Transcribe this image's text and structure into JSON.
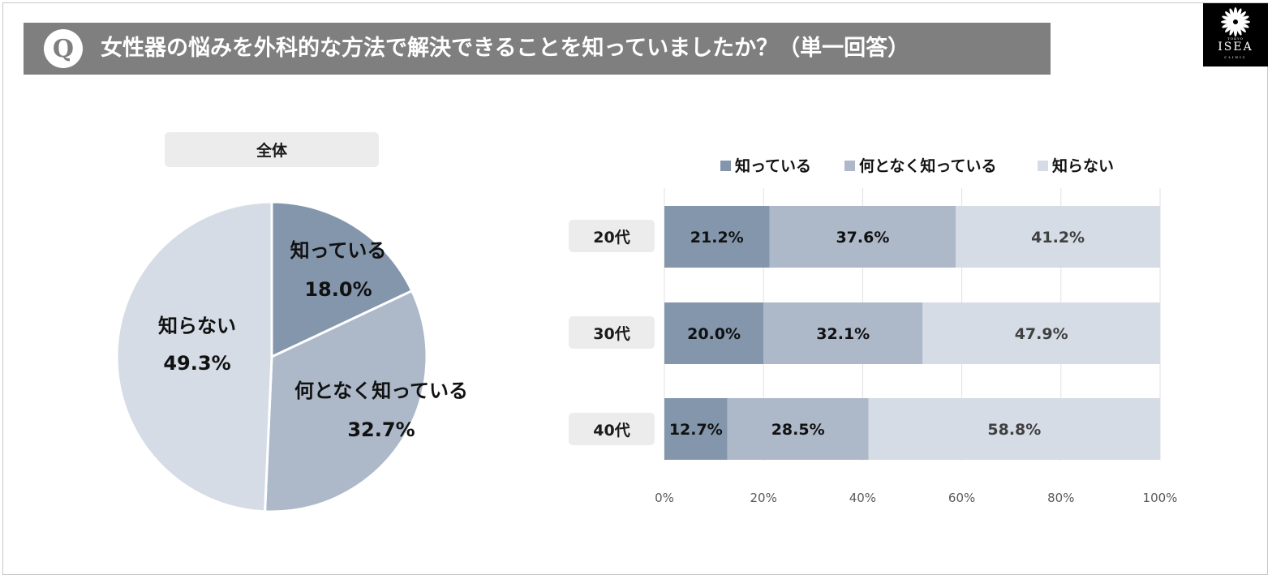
{
  "header": {
    "q_badge": "Q",
    "title": "女性器の悩みを外科的な方法で解決できることを知っていましたか？（単一回答）"
  },
  "logo": {
    "brand_small": "TOKYO",
    "brand": "ISEA",
    "brand_sub": "CLINIC"
  },
  "colors": {
    "dark": "#8396ac",
    "mid": "#adb8c9",
    "light": "#d5dce6",
    "title_bg": "#7f7f7f"
  },
  "chart_data": [
    {
      "type": "pie",
      "title": "全体",
      "slices": [
        {
          "label": "知っている",
          "value": 18.0,
          "value_label": "18.0%"
        },
        {
          "label": "何となく知っている",
          "value": 32.7,
          "value_label": "32.7%"
        },
        {
          "label": "知らない",
          "value": 49.3,
          "value_label": "49.3%"
        }
      ]
    },
    {
      "type": "bar",
      "orientation": "horizontal",
      "stacked": true,
      "categories": [
        "20代",
        "30代",
        "40代"
      ],
      "series": [
        {
          "name": "知っている",
          "values": [
            21.2,
            20.0,
            12.7
          ],
          "labels": [
            "21.2%",
            "20.0%",
            "12.7%"
          ]
        },
        {
          "name": "何となく知っている",
          "values": [
            37.6,
            32.1,
            28.5
          ],
          "labels": [
            "37.6%",
            "32.1%",
            "28.5%"
          ]
        },
        {
          "name": "知らない",
          "values": [
            41.2,
            47.9,
            58.8
          ],
          "labels": [
            "41.2%",
            "47.9%",
            "58.8%"
          ]
        }
      ],
      "xlim": [
        0,
        100
      ],
      "x_ticks": [
        "0%",
        "20%",
        "40%",
        "60%",
        "80%",
        "100%"
      ],
      "legend_position": "top",
      "grid": true
    }
  ]
}
